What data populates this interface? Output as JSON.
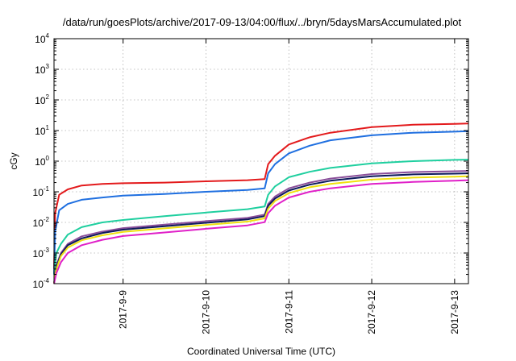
{
  "chart_data": {
    "type": "line",
    "title": "/data/run/goesPlots/archive/2017-09-13/04:00/flux/../bryn/5daysMarsAccumulated.plot",
    "xlabel": "Coordinated Universal Time (UTC)",
    "ylabel": "cGy",
    "y_scale": "log",
    "ylim": [
      0.0001,
      10000
    ],
    "y_ticks": [
      {
        "base": "10",
        "exp": "-4",
        "value": 0.0001
      },
      {
        "base": "10",
        "exp": "-3",
        "value": 0.001
      },
      {
        "base": "10",
        "exp": "-2",
        "value": 0.01
      },
      {
        "base": "10",
        "exp": "-1",
        "value": 0.1
      },
      {
        "base": "10",
        "exp": "0",
        "value": 1
      },
      {
        "base": "10",
        "exp": "1",
        "value": 10
      },
      {
        "base": "10",
        "exp": "2",
        "value": 100
      },
      {
        "base": "10",
        "exp": "3",
        "value": 1000
      },
      {
        "base": "10",
        "exp": "4",
        "value": 10000
      }
    ],
    "xlim": [
      "2017-09-08T04:00",
      "2017-09-13T04:00"
    ],
    "x_ticks": [
      {
        "label": "2017-9-9",
        "value": "2017-09-09T00:00"
      },
      {
        "label": "2017-9-10",
        "value": "2017-09-10T00:00"
      },
      {
        "label": "2017-9-11",
        "value": "2017-09-11T00:00"
      },
      {
        "label": "2017-9-12",
        "value": "2017-09-12T00:00"
      },
      {
        "label": "2017-9-13",
        "value": "2017-09-13T00:00"
      }
    ],
    "grid": true,
    "legend": "none",
    "series": [
      {
        "color": "#e31a1c",
        "points": [
          [
            "2017-09-08T04:00",
            0.0003
          ],
          [
            "2017-09-08T04:20",
            0.02
          ],
          [
            "2017-09-08T05:30",
            0.08
          ],
          [
            "2017-09-08T08:00",
            0.12
          ],
          [
            "2017-09-08T12:00",
            0.16
          ],
          [
            "2017-09-08T18:00",
            0.18
          ],
          [
            "2017-09-09T00:00",
            0.19
          ],
          [
            "2017-09-09T12:00",
            0.2
          ],
          [
            "2017-09-10T00:00",
            0.22
          ],
          [
            "2017-09-10T12:00",
            0.24
          ],
          [
            "2017-09-10T17:00",
            0.26
          ],
          [
            "2017-09-10T18:00",
            0.8
          ],
          [
            "2017-09-10T20:00",
            1.5
          ],
          [
            "2017-09-11T00:00",
            3.5
          ],
          [
            "2017-09-11T06:00",
            6
          ],
          [
            "2017-09-11T12:00",
            8.5
          ],
          [
            "2017-09-12T00:00",
            13
          ],
          [
            "2017-09-12T12:00",
            15.5
          ],
          [
            "2017-09-13T00:00",
            16.5
          ],
          [
            "2017-09-13T04:00",
            17
          ]
        ]
      },
      {
        "color": "#1f6fe0",
        "points": [
          [
            "2017-09-08T04:00",
            0.0002
          ],
          [
            "2017-09-08T04:20",
            0.005
          ],
          [
            "2017-09-08T05:30",
            0.025
          ],
          [
            "2017-09-08T08:00",
            0.04
          ],
          [
            "2017-09-08T12:00",
            0.055
          ],
          [
            "2017-09-08T18:00",
            0.065
          ],
          [
            "2017-09-09T00:00",
            0.075
          ],
          [
            "2017-09-09T12:00",
            0.085
          ],
          [
            "2017-09-10T00:00",
            0.1
          ],
          [
            "2017-09-10T12:00",
            0.115
          ],
          [
            "2017-09-10T17:00",
            0.13
          ],
          [
            "2017-09-10T18:00",
            0.4
          ],
          [
            "2017-09-10T20:00",
            0.8
          ],
          [
            "2017-09-11T00:00",
            1.8
          ],
          [
            "2017-09-11T06:00",
            3.2
          ],
          [
            "2017-09-11T12:00",
            4.8
          ],
          [
            "2017-09-12T00:00",
            7
          ],
          [
            "2017-09-12T12:00",
            8.5
          ],
          [
            "2017-09-13T00:00",
            9.2
          ],
          [
            "2017-09-13T04:00",
            9.5
          ]
        ]
      },
      {
        "color": "#1fcf9f",
        "points": [
          [
            "2017-09-08T04:00",
            0.0002
          ],
          [
            "2017-09-08T04:40",
            0.001
          ],
          [
            "2017-09-08T06:00",
            0.002
          ],
          [
            "2017-09-08T08:00",
            0.004
          ],
          [
            "2017-09-08T12:00",
            0.007
          ],
          [
            "2017-09-08T18:00",
            0.01
          ],
          [
            "2017-09-09T00:00",
            0.012
          ],
          [
            "2017-09-09T12:00",
            0.016
          ],
          [
            "2017-09-10T00:00",
            0.021
          ],
          [
            "2017-09-10T12:00",
            0.027
          ],
          [
            "2017-09-10T17:00",
            0.033
          ],
          [
            "2017-09-10T18:00",
            0.08
          ],
          [
            "2017-09-10T20:00",
            0.15
          ],
          [
            "2017-09-11T00:00",
            0.3
          ],
          [
            "2017-09-11T06:00",
            0.45
          ],
          [
            "2017-09-11T12:00",
            0.6
          ],
          [
            "2017-09-12T00:00",
            0.85
          ],
          [
            "2017-09-12T12:00",
            1.0
          ],
          [
            "2017-09-13T00:00",
            1.1
          ],
          [
            "2017-09-13T04:00",
            1.12
          ]
        ]
      },
      {
        "color": "#8a4e9a",
        "points": [
          [
            "2017-09-08T04:00",
            0.0001
          ],
          [
            "2017-09-08T04:40",
            0.0004
          ],
          [
            "2017-09-08T06:00",
            0.001
          ],
          [
            "2017-09-08T08:00",
            0.002
          ],
          [
            "2017-09-08T12:00",
            0.0035
          ],
          [
            "2017-09-08T18:00",
            0.005
          ],
          [
            "2017-09-09T00:00",
            0.0065
          ],
          [
            "2017-09-09T12:00",
            0.0085
          ],
          [
            "2017-09-10T00:00",
            0.011
          ],
          [
            "2017-09-10T12:00",
            0.014
          ],
          [
            "2017-09-10T17:00",
            0.018
          ],
          [
            "2017-09-10T18:00",
            0.04
          ],
          [
            "2017-09-10T20:00",
            0.07
          ],
          [
            "2017-09-11T00:00",
            0.13
          ],
          [
            "2017-09-11T06:00",
            0.2
          ],
          [
            "2017-09-11T12:00",
            0.27
          ],
          [
            "2017-09-12T00:00",
            0.38
          ],
          [
            "2017-09-12T12:00",
            0.44
          ],
          [
            "2017-09-13T00:00",
            0.47
          ],
          [
            "2017-09-13T04:00",
            0.48
          ]
        ]
      },
      {
        "color": "#0d1a5c",
        "points": [
          [
            "2017-09-08T04:00",
            0.0001
          ],
          [
            "2017-09-08T04:40",
            0.00035
          ],
          [
            "2017-09-08T06:00",
            0.0009
          ],
          [
            "2017-09-08T08:00",
            0.0018
          ],
          [
            "2017-09-08T12:00",
            0.003
          ],
          [
            "2017-09-08T18:00",
            0.0045
          ],
          [
            "2017-09-09T00:00",
            0.0058
          ],
          [
            "2017-09-09T12:00",
            0.0075
          ],
          [
            "2017-09-10T00:00",
            0.0097
          ],
          [
            "2017-09-10T12:00",
            0.0125
          ],
          [
            "2017-09-10T17:00",
            0.016
          ],
          [
            "2017-09-10T18:00",
            0.035
          ],
          [
            "2017-09-10T20:00",
            0.06
          ],
          [
            "2017-09-11T00:00",
            0.11
          ],
          [
            "2017-09-11T06:00",
            0.17
          ],
          [
            "2017-09-11T12:00",
            0.23
          ],
          [
            "2017-09-12T00:00",
            0.32
          ],
          [
            "2017-09-12T12:00",
            0.37
          ],
          [
            "2017-09-13T00:00",
            0.39
          ],
          [
            "2017-09-13T04:00",
            0.4
          ]
        ]
      },
      {
        "color": "#f0e010",
        "points": [
          [
            "2017-09-08T04:00",
            0.0001
          ],
          [
            "2017-09-08T04:40",
            0.0003
          ],
          [
            "2017-09-08T06:00",
            0.0008
          ],
          [
            "2017-09-08T08:00",
            0.0015
          ],
          [
            "2017-09-08T12:00",
            0.0026
          ],
          [
            "2017-09-08T18:00",
            0.0038
          ],
          [
            "2017-09-09T00:00",
            0.0049
          ],
          [
            "2017-09-09T12:00",
            0.0064
          ],
          [
            "2017-09-10T00:00",
            0.0083
          ],
          [
            "2017-09-10T12:00",
            0.0106
          ],
          [
            "2017-09-10T17:00",
            0.0135
          ],
          [
            "2017-09-10T18:00",
            0.028
          ],
          [
            "2017-09-10T20:00",
            0.05
          ],
          [
            "2017-09-11T00:00",
            0.09
          ],
          [
            "2017-09-11T06:00",
            0.14
          ],
          [
            "2017-09-11T12:00",
            0.18
          ],
          [
            "2017-09-12T00:00",
            0.25
          ],
          [
            "2017-09-12T12:00",
            0.29
          ],
          [
            "2017-09-13T00:00",
            0.31
          ],
          [
            "2017-09-13T04:00",
            0.32
          ]
        ]
      },
      {
        "color": "#e020c8",
        "points": [
          [
            "2017-09-08T04:00",
            0.0001
          ],
          [
            "2017-09-08T04:40",
            0.00022
          ],
          [
            "2017-09-08T06:00",
            0.0005
          ],
          [
            "2017-09-08T08:00",
            0.001
          ],
          [
            "2017-09-08T12:00",
            0.0018
          ],
          [
            "2017-09-08T18:00",
            0.0027
          ],
          [
            "2017-09-09T00:00",
            0.0036
          ],
          [
            "2017-09-09T12:00",
            0.0047
          ],
          [
            "2017-09-10T00:00",
            0.0062
          ],
          [
            "2017-09-10T12:00",
            0.008
          ],
          [
            "2017-09-10T17:00",
            0.0102
          ],
          [
            "2017-09-10T18:00",
            0.02
          ],
          [
            "2017-09-10T20:00",
            0.035
          ],
          [
            "2017-09-11T00:00",
            0.065
          ],
          [
            "2017-09-11T06:00",
            0.1
          ],
          [
            "2017-09-11T12:00",
            0.13
          ],
          [
            "2017-09-12T00:00",
            0.18
          ],
          [
            "2017-09-12T12:00",
            0.21
          ],
          [
            "2017-09-13T00:00",
            0.23
          ],
          [
            "2017-09-13T04:00",
            0.24
          ]
        ]
      }
    ]
  }
}
